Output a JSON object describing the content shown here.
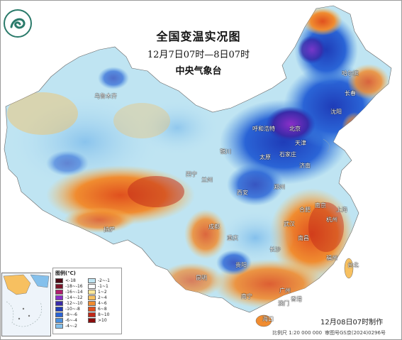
{
  "title": "全国变温实况图",
  "subtitle": "12月7日07时—8日07时",
  "org": "中央气象台",
  "made": "12月08日07时制作",
  "scale": "比例尺 1:20 000 000",
  "gs_number": "审图号GS京(2024)0296号",
  "legend": {
    "title": "图例(℃)",
    "items": [
      {
        "label": "<-18",
        "color": "#4b0a14"
      },
      {
        "label": "-2~-1",
        "color": "#bfe4f2"
      },
      {
        "label": "-18~-16",
        "color": "#7a1428"
      },
      {
        "label": "-1~1",
        "color": "#ffffff"
      },
      {
        "label": "-16~-14",
        "color": "#b01e6e"
      },
      {
        "label": "1~2",
        "color": "#fde89a"
      },
      {
        "label": "-14~-12",
        "color": "#8a2fc8"
      },
      {
        "label": "2~4",
        "color": "#f7c060"
      },
      {
        "label": "-12~-10",
        "color": "#3a2aa8"
      },
      {
        "label": "4~6",
        "color": "#f08c30"
      },
      {
        "label": "-10~-8",
        "color": "#1f3cb8"
      },
      {
        "label": "6~8",
        "color": "#e0501e"
      },
      {
        "label": "-8~-6",
        "color": "#2a64d6"
      },
      {
        "label": "8~10",
        "color": "#c02818"
      },
      {
        "label": "-6~-4",
        "color": "#4a90e0"
      },
      {
        "label": ">10",
        "color": "#8a0c0c"
      },
      {
        "label": "-4~-2",
        "color": "#84c0ec"
      }
    ]
  },
  "cities": [
    {
      "name": "乌鲁木齐"
    },
    {
      "name": "哈尔滨"
    },
    {
      "name": "长春"
    },
    {
      "name": "沈阳"
    },
    {
      "name": "北京"
    },
    {
      "name": "天津"
    },
    {
      "name": "呼和浩特"
    },
    {
      "name": "石家庄"
    },
    {
      "name": "银川"
    },
    {
      "name": "太原"
    },
    {
      "name": "济南"
    },
    {
      "name": "西宁"
    },
    {
      "name": "兰州"
    },
    {
      "name": "西安"
    },
    {
      "name": "郑州"
    },
    {
      "name": "南京"
    },
    {
      "name": "合肥"
    },
    {
      "name": "上海"
    },
    {
      "name": "拉萨"
    },
    {
      "name": "成都"
    },
    {
      "name": "重庆"
    },
    {
      "name": "武汉"
    },
    {
      "name": "杭州"
    },
    {
      "name": "南昌"
    },
    {
      "name": "长沙"
    },
    {
      "name": "贵阳"
    },
    {
      "name": "福州"
    },
    {
      "name": "台北"
    },
    {
      "name": "昆明"
    },
    {
      "name": "南宁"
    },
    {
      "name": "广州"
    },
    {
      "name": "香港"
    },
    {
      "name": "澳门"
    },
    {
      "name": "海口"
    }
  ]
}
